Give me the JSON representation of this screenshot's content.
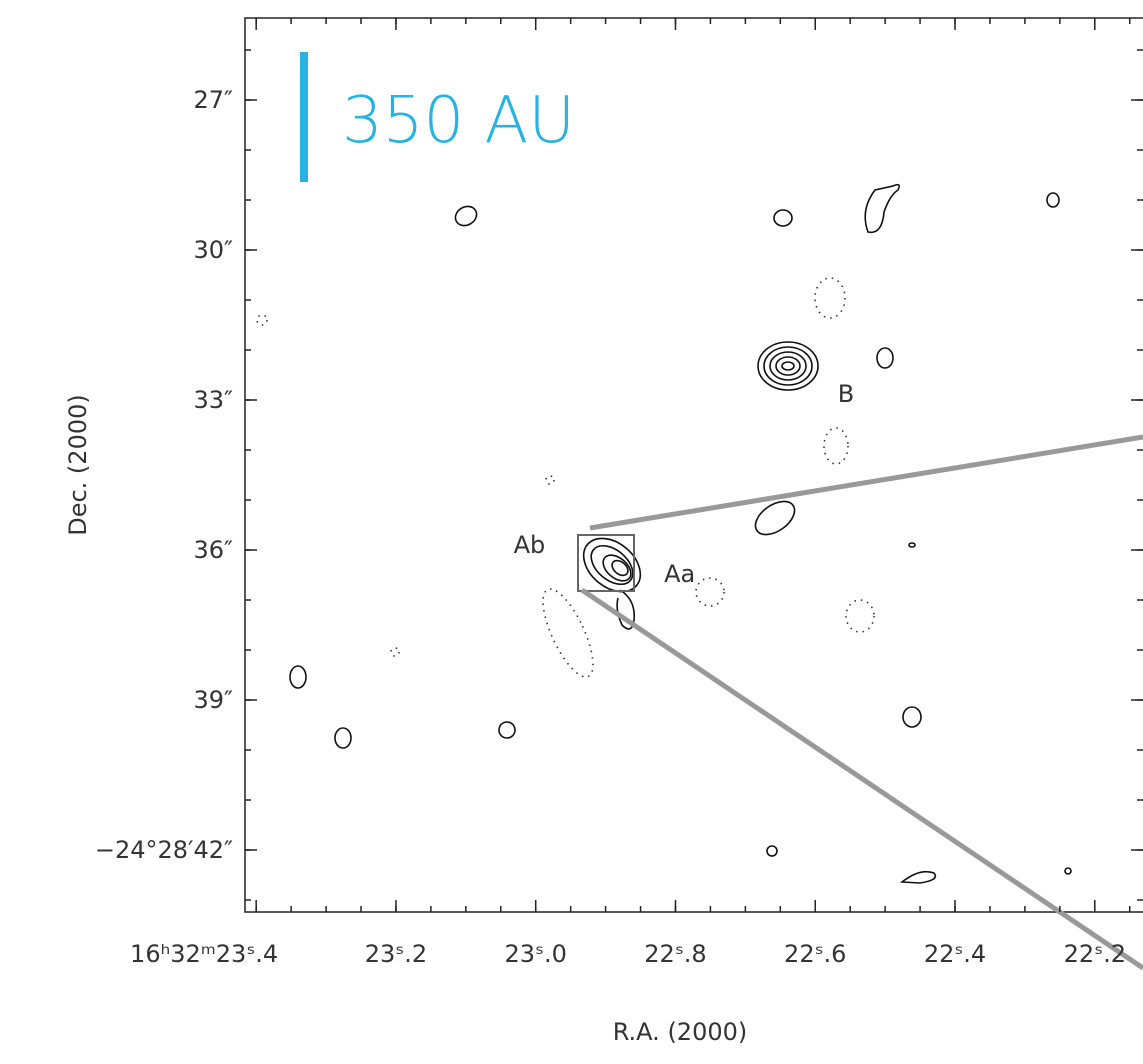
{
  "chart_data": {
    "type": "contour",
    "xlabel": "R.A. (2000)",
    "ylabel": "Dec. (2000)",
    "xlim": [
      23.416,
      22.131
    ],
    "ylim": [
      43.24,
      25.36
    ],
    "xticks": [
      {
        "value": 23.4,
        "label": "16ʰ32ᵐ23ˢ.4"
      },
      {
        "value": 23.2,
        "label": "23ˢ.2"
      },
      {
        "value": 23.0,
        "label": "23ˢ.0"
      },
      {
        "value": 22.8,
        "label": "22ˢ.8"
      },
      {
        "value": 22.6,
        "label": "22ˢ.6"
      },
      {
        "value": 22.4,
        "label": "22ˢ.4"
      },
      {
        "value": 22.2,
        "label": "22ˢ.2"
      }
    ],
    "yticks": [
      {
        "value": 27,
        "label": "27″"
      },
      {
        "value": 30,
        "label": "30″"
      },
      {
        "value": 33,
        "label": "33″"
      },
      {
        "value": 36,
        "label": "36″"
      },
      {
        "value": 39,
        "label": "39″"
      },
      {
        "value": 42,
        "label": "−24°28′42″"
      }
    ],
    "scale_bar": "350 AU",
    "annotations": [
      {
        "text": "B",
        "x": 22.556,
        "y": 32.84
      },
      {
        "text": "Ab",
        "x": 23.009,
        "y": 35.86
      },
      {
        "text": "Aa",
        "x": 22.794,
        "y": 36.44
      }
    ]
  }
}
